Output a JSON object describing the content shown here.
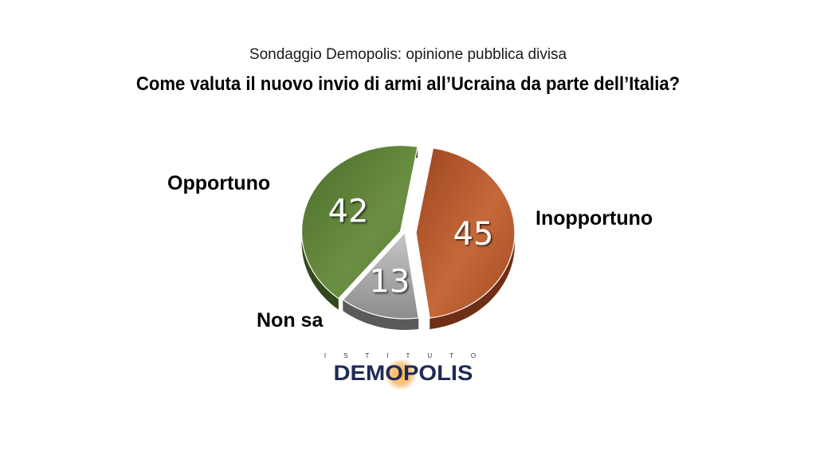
{
  "header": {
    "subtitle": "Sondaggio Demopolis: opinione pubblica divisa",
    "title": "Come valuta il nuovo invio di armi all’Ucraina da parte dell’Italia?"
  },
  "chart_data": {
    "type": "pie",
    "title": "Come valuta il nuovo invio di armi all’Ucraina da parte dell’Italia?",
    "subtitle": "Sondaggio Demopolis: opinione pubblica divisa",
    "categories": [
      "Inopportuno",
      "Non sa",
      "Opportuno"
    ],
    "values": [
      45,
      13,
      42
    ],
    "data_labels": [
      "45",
      "13",
      "42"
    ],
    "colors": [
      "#b0542a",
      "#a6a6a6",
      "#5a7f35"
    ],
    "exploded": [
      "Inopportuno"
    ],
    "legend": "none"
  },
  "logo": {
    "top_text": "ISTITUTO",
    "main_text": "DEMOPOLIS"
  }
}
